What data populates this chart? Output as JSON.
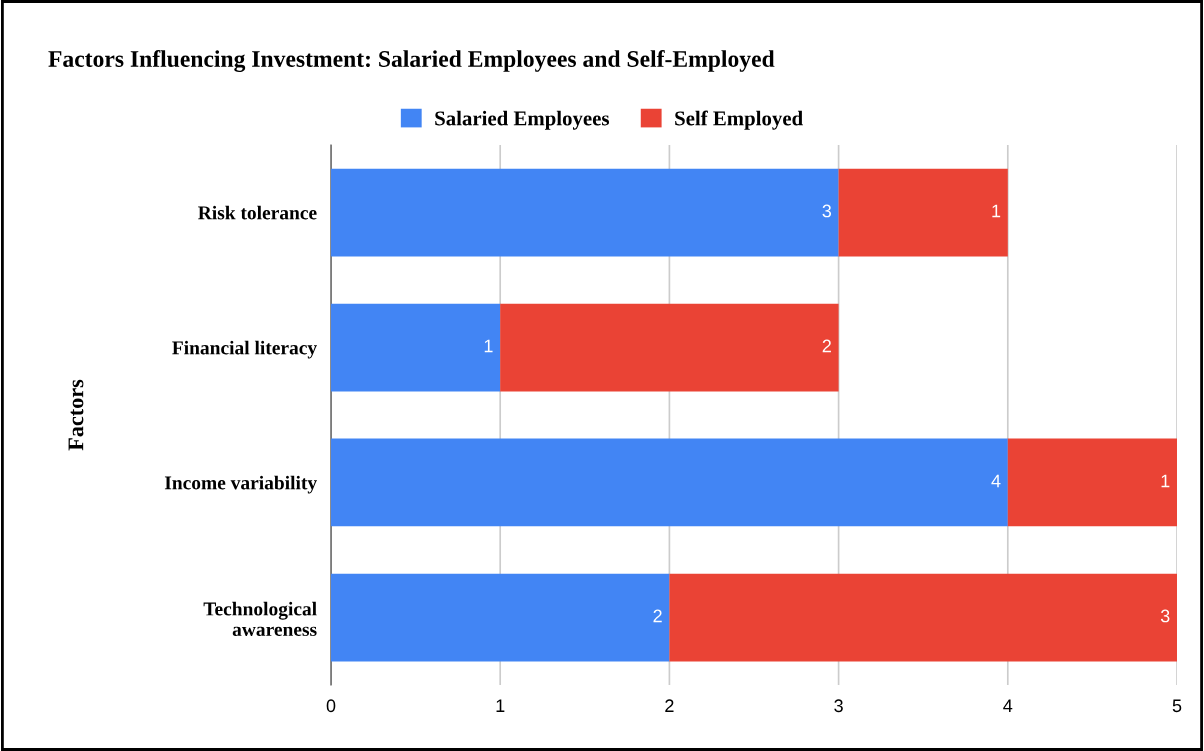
{
  "chart_data": {
    "type": "bar",
    "orientation": "horizontal",
    "stacked": true,
    "title": "Factors Influencing Investment: Salaried Employees and Self-Employed",
    "ylabel": "Factors",
    "categories": [
      "Risk tolerance",
      "Financial literacy",
      "Income variability",
      "Technological\nawareness"
    ],
    "series": [
      {
        "name": "Salaried Employees",
        "color": "#4285f4",
        "values": [
          3,
          1,
          4,
          2
        ]
      },
      {
        "name": "Self Employed",
        "color": "#ea4335",
        "values": [
          1,
          2,
          1,
          3
        ]
      }
    ],
    "xlim": [
      0,
      5
    ],
    "xticks": [
      0,
      1,
      2,
      3,
      4,
      5
    ],
    "grid": "x",
    "legend": "top",
    "data_labels": true
  }
}
